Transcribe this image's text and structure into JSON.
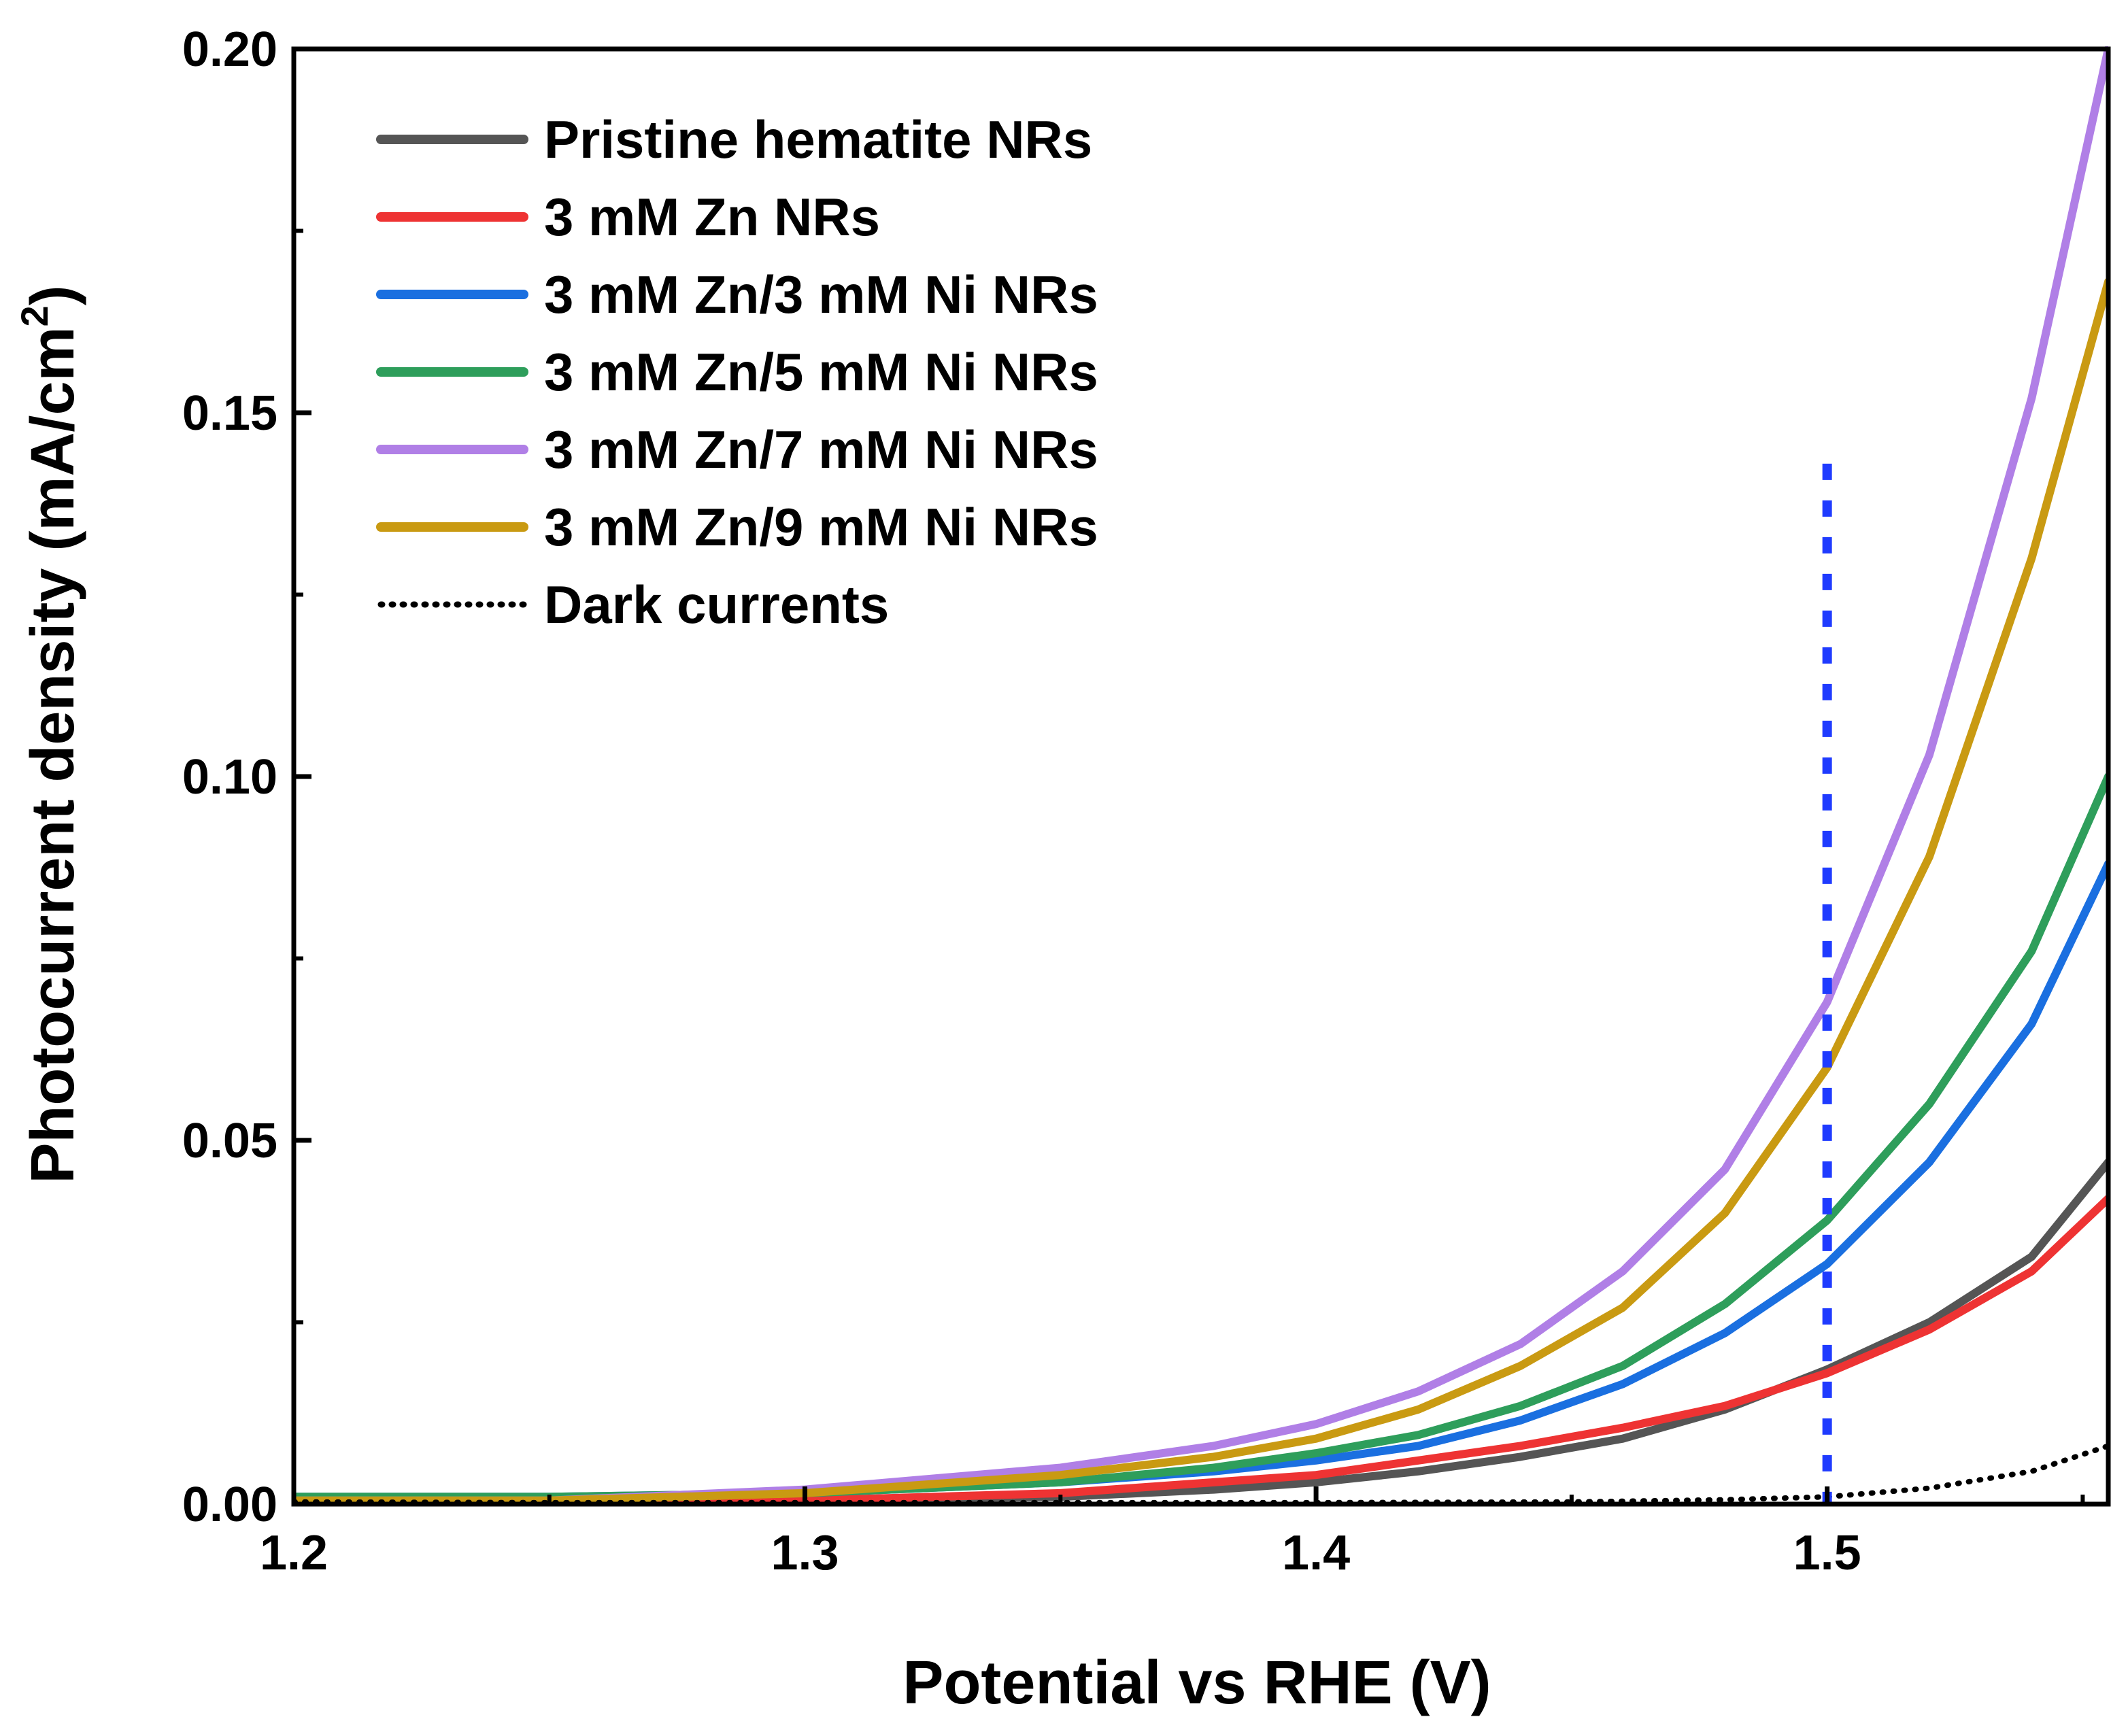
{
  "chart_data": {
    "type": "line",
    "title": "",
    "xlabel": "Potential vs RHE (V)",
    "ylabel_main": "Photocurrent density (mA/cm",
    "ylabel_sup": "2",
    "ylabel_close": ")",
    "xlim": [
      1.2,
      1.555
    ],
    "ylim": [
      0.0,
      0.2
    ],
    "xticks": [
      1.2,
      1.3,
      1.4,
      1.5
    ],
    "xtick_labels": [
      "1.2",
      "1.3",
      "1.4",
      "1.5"
    ],
    "yticks": [
      0.0,
      0.05,
      0.1,
      0.15,
      0.2
    ],
    "ytick_labels": [
      "0.00",
      "0.05",
      "0.10",
      "0.15",
      "0.20"
    ],
    "reference_line": {
      "x": 1.5,
      "y_range": [
        0.0,
        0.143
      ],
      "color": "#1f3bff",
      "style": "dotted"
    },
    "legend_position": "top-left",
    "series": [
      {
        "name": "Pristine hematite NRs",
        "color": "#555555",
        "style": "solid",
        "x": [
          1.2,
          1.25,
          1.3,
          1.35,
          1.38,
          1.4,
          1.42,
          1.44,
          1.46,
          1.48,
          1.5,
          1.52,
          1.54,
          1.555
        ],
        "values": [
          0.0,
          0.0,
          0.0005,
          0.001,
          0.002,
          0.003,
          0.0045,
          0.0065,
          0.009,
          0.013,
          0.0185,
          0.025,
          0.034,
          0.047
        ]
      },
      {
        "name": "3 mM Zn NRs",
        "color": "#ee3333",
        "style": "solid",
        "x": [
          1.2,
          1.25,
          1.3,
          1.35,
          1.38,
          1.4,
          1.42,
          1.44,
          1.46,
          1.48,
          1.5,
          1.52,
          1.54,
          1.555
        ],
        "values": [
          0.0,
          0.0,
          0.0005,
          0.0015,
          0.003,
          0.004,
          0.006,
          0.008,
          0.0105,
          0.0135,
          0.018,
          0.024,
          0.032,
          0.042
        ]
      },
      {
        "name": "3 mM Zn/3 mM Ni NRs",
        "color": "#1a6fe0",
        "style": "solid",
        "x": [
          1.2,
          1.25,
          1.3,
          1.35,
          1.38,
          1.4,
          1.42,
          1.44,
          1.46,
          1.48,
          1.5,
          1.52,
          1.54,
          1.555
        ],
        "values": [
          0.001,
          0.001,
          0.0015,
          0.003,
          0.0045,
          0.006,
          0.008,
          0.0115,
          0.0165,
          0.0235,
          0.033,
          0.047,
          0.066,
          0.088
        ]
      },
      {
        "name": "3 mM Zn/5 mM Ni NRs",
        "color": "#2e9e5b",
        "style": "solid",
        "x": [
          1.2,
          1.25,
          1.3,
          1.35,
          1.38,
          1.4,
          1.42,
          1.44,
          1.46,
          1.48,
          1.5,
          1.52,
          1.54,
          1.555
        ],
        "values": [
          0.001,
          0.001,
          0.0015,
          0.003,
          0.005,
          0.007,
          0.0095,
          0.0135,
          0.019,
          0.0275,
          0.039,
          0.055,
          0.076,
          0.1
        ]
      },
      {
        "name": "3 mM Zn/7 mM Ni NRs",
        "color": "#b07fe6",
        "style": "solid",
        "x": [
          1.2,
          1.25,
          1.3,
          1.35,
          1.38,
          1.4,
          1.42,
          1.44,
          1.46,
          1.48,
          1.5,
          1.52,
          1.54,
          1.555
        ],
        "values": [
          0.0005,
          0.0005,
          0.002,
          0.005,
          0.008,
          0.011,
          0.0155,
          0.022,
          0.032,
          0.046,
          0.069,
          0.103,
          0.152,
          0.2
        ]
      },
      {
        "name": "3 mM Zn/9 mM Ni NRs",
        "color": "#c99a12",
        "style": "solid",
        "x": [
          1.2,
          1.25,
          1.3,
          1.35,
          1.38,
          1.4,
          1.42,
          1.44,
          1.46,
          1.48,
          1.5,
          1.52,
          1.54,
          1.555
        ],
        "values": [
          0.0005,
          0.0005,
          0.0015,
          0.004,
          0.0065,
          0.009,
          0.013,
          0.019,
          0.027,
          0.04,
          0.06,
          0.089,
          0.13,
          0.168
        ]
      },
      {
        "name": "Dark currents",
        "color": "#000000",
        "style": "dotted",
        "x": [
          1.2,
          1.25,
          1.3,
          1.35,
          1.4,
          1.45,
          1.48,
          1.5,
          1.52,
          1.54,
          1.555
        ],
        "values": [
          0.0003,
          0.0002,
          0.0002,
          0.0002,
          0.0002,
          0.0003,
          0.0006,
          0.001,
          0.0022,
          0.0045,
          0.008
        ]
      }
    ]
  }
}
